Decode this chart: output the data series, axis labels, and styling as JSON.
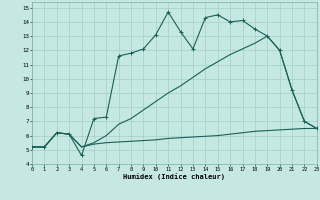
{
  "xlabel": "Humidex (Indice chaleur)",
  "bg_color": "#c5e8e3",
  "grid_color": "#a5cdc8",
  "line_color": "#1a6058",
  "xlim": [
    0,
    23
  ],
  "ylim": [
    4,
    15.4
  ],
  "xticks": [
    0,
    1,
    2,
    3,
    4,
    5,
    6,
    7,
    8,
    9,
    10,
    11,
    12,
    13,
    14,
    15,
    16,
    17,
    18,
    19,
    20,
    21,
    22,
    23
  ],
  "yticks": [
    4,
    5,
    6,
    7,
    8,
    9,
    10,
    11,
    12,
    13,
    14,
    15
  ],
  "line_top_x": [
    0,
    1,
    2,
    3,
    4,
    5,
    6,
    7,
    8,
    9,
    10,
    11,
    12,
    13,
    14,
    15,
    16,
    17,
    18,
    19,
    20,
    21,
    22,
    23
  ],
  "line_top_y": [
    5.2,
    5.2,
    6.2,
    6.1,
    4.6,
    7.2,
    7.3,
    11.6,
    11.8,
    12.1,
    13.1,
    14.7,
    13.3,
    12.1,
    14.3,
    14.5,
    14.0,
    14.1,
    13.5,
    13.0,
    12.0,
    9.2,
    7.0,
    6.5
  ],
  "line_mid_x": [
    0,
    1,
    2,
    3,
    4,
    5,
    6,
    7,
    8,
    9,
    10,
    11,
    12,
    13,
    14,
    15,
    16,
    17,
    18,
    19,
    20,
    21,
    22,
    23
  ],
  "line_mid_y": [
    5.2,
    5.2,
    6.2,
    6.1,
    5.2,
    5.5,
    6.0,
    6.8,
    7.2,
    7.8,
    8.4,
    9.0,
    9.5,
    10.1,
    10.7,
    11.2,
    11.7,
    12.1,
    12.5,
    13.0,
    12.0,
    9.2,
    7.0,
    6.5
  ],
  "line_bot_x": [
    0,
    1,
    2,
    3,
    4,
    5,
    6,
    7,
    8,
    9,
    10,
    11,
    12,
    13,
    14,
    15,
    16,
    17,
    18,
    19,
    20,
    21,
    22,
    23
  ],
  "line_bot_y": [
    5.2,
    5.2,
    6.2,
    6.1,
    5.2,
    5.4,
    5.5,
    5.55,
    5.6,
    5.65,
    5.7,
    5.8,
    5.85,
    5.9,
    5.95,
    6.0,
    6.1,
    6.2,
    6.3,
    6.35,
    6.4,
    6.45,
    6.5,
    6.5
  ]
}
